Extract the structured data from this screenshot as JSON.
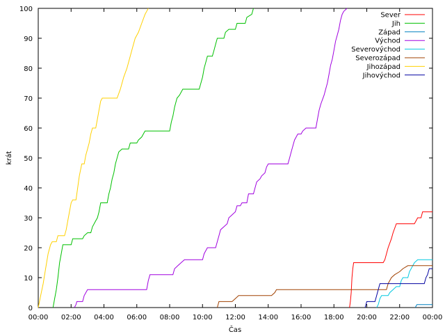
{
  "chart_data": {
    "type": "line",
    "title": "",
    "xlabel": "Čas",
    "ylabel": "krát",
    "x_unit": "hours",
    "xlim": [
      0,
      24
    ],
    "ylim": [
      0,
      100
    ],
    "x_ticks": [
      {
        "value": 0,
        "label": "00:00"
      },
      {
        "value": 2,
        "label": "02:00"
      },
      {
        "value": 4,
        "label": "04:00"
      },
      {
        "value": 6,
        "label": "06:00"
      },
      {
        "value": 8,
        "label": "08:00"
      },
      {
        "value": 10,
        "label": "10:00"
      },
      {
        "value": 12,
        "label": "12:00"
      },
      {
        "value": 14,
        "label": "14:00"
      },
      {
        "value": 16,
        "label": "16:00"
      },
      {
        "value": 18,
        "label": "18:00"
      },
      {
        "value": 20,
        "label": "20:00"
      },
      {
        "value": 22,
        "label": "22:00"
      },
      {
        "value": 24,
        "label": "00:00"
      }
    ],
    "y_ticks": [
      0,
      10,
      20,
      30,
      40,
      50,
      60,
      70,
      80,
      90,
      100
    ],
    "grid": false,
    "legend_position": "top-right",
    "series": [
      {
        "name": "Sever",
        "color": "#ff0000",
        "points": [
          [
            18.95,
            0
          ],
          [
            19.0,
            2
          ],
          [
            19.05,
            5
          ],
          [
            19.1,
            10
          ],
          [
            19.15,
            13
          ],
          [
            19.2,
            15
          ],
          [
            21.0,
            15
          ],
          [
            21.1,
            16
          ],
          [
            21.3,
            20
          ],
          [
            21.5,
            23
          ],
          [
            21.6,
            25
          ],
          [
            21.8,
            28
          ],
          [
            22.9,
            28
          ],
          [
            23.0,
            29
          ],
          [
            23.1,
            30
          ],
          [
            23.3,
            30
          ],
          [
            23.4,
            32
          ],
          [
            24,
            32
          ]
        ]
      },
      {
        "name": "Jih",
        "color": "#00c000",
        "points": [
          [
            0.9,
            0
          ],
          [
            1.0,
            3
          ],
          [
            1.1,
            6
          ],
          [
            1.2,
            10
          ],
          [
            1.3,
            15
          ],
          [
            1.4,
            18
          ],
          [
            1.5,
            21
          ],
          [
            2.0,
            21
          ],
          [
            2.1,
            23
          ],
          [
            2.7,
            23
          ],
          [
            2.8,
            24
          ],
          [
            3.0,
            25
          ],
          [
            3.2,
            25
          ],
          [
            3.3,
            27
          ],
          [
            3.5,
            29
          ],
          [
            3.6,
            30
          ],
          [
            3.7,
            32
          ],
          [
            3.8,
            35
          ],
          [
            4.2,
            35
          ],
          [
            4.3,
            38
          ],
          [
            4.4,
            40
          ],
          [
            4.5,
            43
          ],
          [
            4.6,
            45
          ],
          [
            4.7,
            48
          ],
          [
            4.8,
            50
          ],
          [
            4.9,
            52
          ],
          [
            5.1,
            53
          ],
          [
            5.5,
            53
          ],
          [
            5.6,
            55
          ],
          [
            6.0,
            55
          ],
          [
            6.1,
            56
          ],
          [
            6.3,
            57
          ],
          [
            6.5,
            59
          ],
          [
            8.0,
            59
          ],
          [
            8.1,
            62
          ],
          [
            8.2,
            64
          ],
          [
            8.3,
            67
          ],
          [
            8.45,
            70
          ],
          [
            8.6,
            71
          ],
          [
            8.8,
            73
          ],
          [
            9.8,
            73
          ],
          [
            9.9,
            75
          ],
          [
            10.0,
            77
          ],
          [
            10.1,
            80
          ],
          [
            10.2,
            82
          ],
          [
            10.3,
            84
          ],
          [
            10.6,
            84
          ],
          [
            10.7,
            86
          ],
          [
            10.8,
            88
          ],
          [
            10.9,
            90
          ],
          [
            11.3,
            90
          ],
          [
            11.4,
            92
          ],
          [
            11.6,
            93
          ],
          [
            12.0,
            93
          ],
          [
            12.1,
            95
          ],
          [
            12.6,
            95
          ],
          [
            12.7,
            97
          ],
          [
            13.0,
            98
          ],
          [
            13.1,
            100
          ]
        ]
      },
      {
        "name": "Západ",
        "color": "#0080c0",
        "points": [
          [
            22.95,
            0
          ],
          [
            23.05,
            1
          ],
          [
            24,
            1
          ]
        ]
      },
      {
        "name": "Východ",
        "color": "#a000e0",
        "points": [
          [
            2.2,
            0
          ],
          [
            2.3,
            1
          ],
          [
            2.35,
            2
          ],
          [
            2.7,
            2
          ],
          [
            2.8,
            4
          ],
          [
            2.9,
            5
          ],
          [
            3.0,
            6
          ],
          [
            6.6,
            6
          ],
          [
            6.7,
            9
          ],
          [
            6.8,
            11
          ],
          [
            8.2,
            11
          ],
          [
            8.3,
            13
          ],
          [
            8.5,
            14
          ],
          [
            8.7,
            15
          ],
          [
            8.9,
            16
          ],
          [
            10.0,
            16
          ],
          [
            10.1,
            18
          ],
          [
            10.3,
            20
          ],
          [
            10.8,
            20
          ],
          [
            10.9,
            22
          ],
          [
            11.0,
            24
          ],
          [
            11.1,
            26
          ],
          [
            11.3,
            27
          ],
          [
            11.5,
            28
          ],
          [
            11.6,
            30
          ],
          [
            11.8,
            31
          ],
          [
            12.0,
            32
          ],
          [
            12.1,
            34
          ],
          [
            12.3,
            34
          ],
          [
            12.4,
            35
          ],
          [
            12.7,
            35
          ],
          [
            12.8,
            38
          ],
          [
            13.1,
            38
          ],
          [
            13.2,
            40
          ],
          [
            13.3,
            42
          ],
          [
            13.5,
            43
          ],
          [
            13.6,
            44
          ],
          [
            13.8,
            45
          ],
          [
            13.9,
            47
          ],
          [
            14.0,
            48
          ],
          [
            15.2,
            48
          ],
          [
            15.3,
            50
          ],
          [
            15.4,
            52
          ],
          [
            15.5,
            54
          ],
          [
            15.6,
            56
          ],
          [
            15.8,
            58
          ],
          [
            16.0,
            58
          ],
          [
            16.1,
            59
          ],
          [
            16.3,
            60
          ],
          [
            16.9,
            60
          ],
          [
            17.0,
            63
          ],
          [
            17.1,
            66
          ],
          [
            17.2,
            68
          ],
          [
            17.4,
            71
          ],
          [
            17.5,
            73
          ],
          [
            17.6,
            75
          ],
          [
            17.7,
            78
          ],
          [
            17.8,
            81
          ],
          [
            17.9,
            83
          ],
          [
            18.0,
            86
          ],
          [
            18.1,
            89
          ],
          [
            18.2,
            91
          ],
          [
            18.3,
            93
          ],
          [
            18.4,
            96
          ],
          [
            18.5,
            98
          ],
          [
            18.6,
            99
          ],
          [
            18.8,
            100
          ]
        ]
      },
      {
        "name": "Severovýchod",
        "color": "#00c8e0",
        "points": [
          [
            20.6,
            0
          ],
          [
            20.7,
            1
          ],
          [
            20.8,
            3
          ],
          [
            20.9,
            4
          ],
          [
            21.3,
            4
          ],
          [
            21.4,
            5
          ],
          [
            21.6,
            6
          ],
          [
            21.8,
            7
          ],
          [
            22.0,
            7
          ],
          [
            22.1,
            9
          ],
          [
            22.2,
            10
          ],
          [
            22.5,
            10
          ],
          [
            22.6,
            12
          ],
          [
            22.7,
            13
          ],
          [
            22.8,
            14
          ],
          [
            22.9,
            15
          ],
          [
            23.1,
            16
          ],
          [
            24,
            16
          ]
        ]
      },
      {
        "name": "Severozápad",
        "color": "#a04000",
        "points": [
          [
            10.9,
            0
          ],
          [
            11.0,
            2
          ],
          [
            11.8,
            2
          ],
          [
            12.0,
            3
          ],
          [
            12.2,
            4
          ],
          [
            14.2,
            4
          ],
          [
            14.4,
            5
          ],
          [
            14.5,
            6
          ],
          [
            21.2,
            6
          ],
          [
            21.3,
            8
          ],
          [
            21.5,
            10
          ],
          [
            21.7,
            11
          ],
          [
            22.0,
            12
          ],
          [
            22.2,
            13
          ],
          [
            22.5,
            14
          ],
          [
            24,
            14
          ]
        ]
      },
      {
        "name": "Jihozápad",
        "color": "#ffd000",
        "points": [
          [
            0.0,
            0
          ],
          [
            0.15,
            4
          ],
          [
            0.3,
            8
          ],
          [
            0.45,
            13
          ],
          [
            0.6,
            18
          ],
          [
            0.75,
            21
          ],
          [
            0.85,
            22
          ],
          [
            1.1,
            22
          ],
          [
            1.2,
            24
          ],
          [
            1.6,
            24
          ],
          [
            1.7,
            26
          ],
          [
            1.8,
            29
          ],
          [
            1.9,
            32
          ],
          [
            2.0,
            35
          ],
          [
            2.1,
            36
          ],
          [
            2.3,
            36
          ],
          [
            2.4,
            40
          ],
          [
            2.5,
            44
          ],
          [
            2.65,
            48
          ],
          [
            2.8,
            48
          ],
          [
            2.9,
            51
          ],
          [
            3.0,
            53
          ],
          [
            3.1,
            55
          ],
          [
            3.2,
            58
          ],
          [
            3.3,
            60
          ],
          [
            3.5,
            60
          ],
          [
            3.6,
            63
          ],
          [
            3.7,
            66
          ],
          [
            3.8,
            69
          ],
          [
            3.9,
            70
          ],
          [
            4.8,
            70
          ],
          [
            5.0,
            73
          ],
          [
            5.2,
            77
          ],
          [
            5.4,
            80
          ],
          [
            5.6,
            84
          ],
          [
            5.75,
            87
          ],
          [
            5.9,
            90
          ],
          [
            6.1,
            92
          ],
          [
            6.3,
            95
          ],
          [
            6.5,
            98
          ],
          [
            6.6,
            99
          ],
          [
            6.7,
            100
          ]
        ]
      },
      {
        "name": "Jihovýchod",
        "color": "#0000a0",
        "points": [
          [
            19.9,
            0
          ],
          [
            20.0,
            2
          ],
          [
            20.5,
            2
          ],
          [
            20.6,
            4
          ],
          [
            20.7,
            6
          ],
          [
            20.8,
            8
          ],
          [
            23.5,
            8
          ],
          [
            23.6,
            10
          ],
          [
            23.7,
            11
          ],
          [
            23.8,
            13
          ],
          [
            24,
            13
          ]
        ]
      }
    ]
  }
}
